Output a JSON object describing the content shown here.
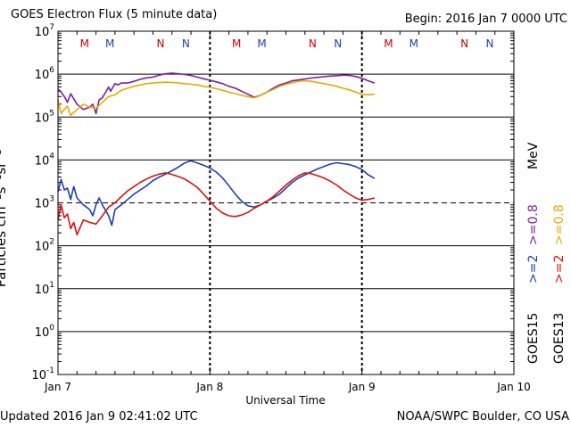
{
  "header": {
    "title": "GOES Electron Flux (5 minute data)",
    "begin": "Begin: 2016 Jan 7 0000 UTC"
  },
  "footer": {
    "updated": "Updated 2016 Jan  9 02:41:02 UTC",
    "credit": "NOAA/SWPC Boulder, CO USA"
  },
  "legend": {
    "goes15": "GOES15",
    "goes13": "GOES13",
    "e2_goes15": ">=2",
    "e2_goes13": ">=2",
    "e08_goes15": ">=0.8",
    "e08_goes13": ">=0.8",
    "unit": "MeV"
  },
  "chart_data": {
    "type": "line",
    "xlabel": "Universal Time",
    "ylabel": "Particles cm⁻²s⁻¹sr⁻¹",
    "y_scale": "log",
    "ylim_exponent": [
      -1,
      7
    ],
    "y_ticks": [
      {
        "base": "10",
        "exp": "7"
      },
      {
        "base": "10",
        "exp": "6"
      },
      {
        "base": "10",
        "exp": "5"
      },
      {
        "base": "10",
        "exp": "4"
      },
      {
        "base": "10",
        "exp": "3"
      },
      {
        "base": "10",
        "exp": "2"
      },
      {
        "base": "10",
        "exp": "1"
      },
      {
        "base": "10",
        "exp": "0"
      },
      {
        "base": "10",
        "exp": "-1"
      }
    ],
    "xlim_hours": [
      0,
      72
    ],
    "x_ticks": [
      {
        "label": "Jan 7",
        "hours": 0
      },
      {
        "label": "Jan 8",
        "hours": 24
      },
      {
        "label": "Jan 9",
        "hours": 48
      },
      {
        "label": "Jan 10",
        "hours": 72
      }
    ],
    "threshold_line": {
      "value": 1000,
      "style": "dashed"
    },
    "markers": [
      {
        "label": "M",
        "hours": 4.2,
        "color": "#cc0000"
      },
      {
        "label": "M",
        "hours": 8.2,
        "color": "#1f3fb0"
      },
      {
        "label": "N",
        "hours": 16.2,
        "color": "#cc0000"
      },
      {
        "label": "N",
        "hours": 20.2,
        "color": "#1f3fb0"
      },
      {
        "label": "M",
        "hours": 28.2,
        "color": "#cc0000"
      },
      {
        "label": "M",
        "hours": 32.2,
        "color": "#1f3fb0"
      },
      {
        "label": "N",
        "hours": 40.2,
        "color": "#cc0000"
      },
      {
        "label": "N",
        "hours": 44.2,
        "color": "#1f3fb0"
      },
      {
        "label": "M",
        "hours": 52.2,
        "color": "#cc0000"
      },
      {
        "label": "M",
        "hours": 56.2,
        "color": "#1f3fb0"
      },
      {
        "label": "N",
        "hours": 64.2,
        "color": "#cc0000"
      },
      {
        "label": "N",
        "hours": 68.2,
        "color": "#1f3fb0"
      }
    ],
    "series": [
      {
        "name": "GOES15 >=0.8 MeV",
        "color": "#7a1fa0",
        "x": [
          0,
          0.5,
          1,
          1.5,
          2,
          3,
          4,
          5,
          5.5,
          6,
          6.5,
          7,
          8,
          8.3,
          9,
          9.5,
          10,
          11,
          12,
          13,
          14,
          15,
          16,
          17,
          18,
          19,
          20,
          21,
          22,
          23,
          24,
          25,
          26,
          27,
          28,
          29,
          30,
          31,
          32,
          33,
          34,
          35,
          36,
          37,
          38,
          39,
          40,
          41,
          42,
          43,
          44,
          45,
          46,
          47,
          48,
          49,
          50
        ],
        "y": [
          450000,
          380000,
          300000,
          220000,
          350000,
          200000,
          150000,
          170000,
          200000,
          120000,
          250000,
          280000,
          500000,
          400000,
          600000,
          560000,
          620000,
          620000,
          680000,
          760000,
          820000,
          850000,
          950000,
          1020000,
          1050000,
          1020000,
          980000,
          930000,
          850000,
          780000,
          720000,
          660000,
          600000,
          520000,
          470000,
          400000,
          340000,
          290000,
          320000,
          380000,
          470000,
          560000,
          620000,
          700000,
          730000,
          770000,
          810000,
          840000,
          870000,
          900000,
          920000,
          950000,
          930000,
          880000,
          800000,
          700000,
          620000
        ]
      },
      {
        "name": "GOES13 >=0.8 MeV",
        "color": "#e8a900",
        "x": [
          0,
          0.5,
          1,
          1.5,
          2,
          3,
          4,
          5,
          6,
          7,
          8,
          9,
          10,
          11,
          12,
          13,
          14,
          15,
          16,
          17,
          18,
          19,
          20,
          21,
          22,
          23,
          24,
          25,
          26,
          27,
          28,
          29,
          30,
          31,
          32,
          33,
          34,
          35,
          36,
          37,
          38,
          39,
          40,
          41,
          42,
          43,
          44,
          45,
          46,
          47,
          48,
          49,
          50
        ],
        "y": [
          250000,
          120000,
          150000,
          180000,
          110000,
          150000,
          200000,
          170000,
          160000,
          220000,
          300000,
          330000,
          420000,
          470000,
          520000,
          560000,
          600000,
          620000,
          640000,
          650000,
          640000,
          620000,
          600000,
          580000,
          560000,
          520000,
          490000,
          460000,
          420000,
          380000,
          350000,
          320000,
          300000,
          280000,
          320000,
          380000,
          440000,
          520000,
          580000,
          630000,
          680000,
          700000,
          680000,
          640000,
          600000,
          560000,
          520000,
          470000,
          430000,
          380000,
          340000,
          330000,
          340000
        ]
      },
      {
        "name": "GOES15 >=2 MeV",
        "color": "#1f3fb0",
        "x": [
          0,
          0.5,
          1,
          1.5,
          2,
          2.5,
          3,
          4,
          5,
          5.5,
          6,
          6.5,
          7,
          8,
          8.5,
          9,
          10,
          11,
          12,
          13,
          14,
          15,
          16,
          17,
          18,
          19,
          20,
          21,
          22,
          23,
          24,
          25,
          26,
          27,
          28,
          29,
          30,
          31,
          32,
          33,
          34,
          35,
          36,
          37,
          38,
          39,
          40,
          41,
          42,
          43,
          44,
          45,
          46,
          47,
          48,
          49,
          50
        ],
        "y": [
          1800,
          3500,
          2000,
          2200,
          1200,
          2400,
          1300,
          900,
          700,
          500,
          900,
          1300,
          900,
          500,
          300,
          700,
          900,
          1200,
          1600,
          2000,
          2500,
          3300,
          4000,
          4700,
          5600,
          6800,
          8500,
          9500,
          8500,
          7500,
          6500,
          5200,
          3800,
          2500,
          1600,
          1100,
          850,
          800,
          900,
          1100,
          1300,
          1600,
          2200,
          3000,
          3800,
          4500,
          5300,
          6200,
          7000,
          8000,
          8600,
          8200,
          7800,
          7000,
          6000,
          4500,
          3700
        ]
      },
      {
        "name": "GOES13 >=2 MeV",
        "color": "#dd1111",
        "x": [
          0,
          0.5,
          1,
          1.5,
          2,
          2.5,
          3,
          4,
          5,
          6,
          7,
          8,
          9,
          10,
          11,
          12,
          13,
          14,
          15,
          16,
          17,
          18,
          19,
          20,
          21,
          22,
          23,
          24,
          25,
          26,
          27,
          28,
          29,
          30,
          31,
          32,
          33,
          34,
          35,
          36,
          37,
          38,
          39,
          40,
          41,
          42,
          43,
          44,
          45,
          46,
          47,
          48,
          49,
          50
        ],
        "y": [
          400,
          900,
          450,
          550,
          250,
          350,
          180,
          400,
          350,
          320,
          500,
          800,
          1000,
          1400,
          1900,
          2400,
          3000,
          3600,
          4200,
          4700,
          5000,
          4600,
          4100,
          3600,
          2900,
          2300,
          1600,
          1100,
          750,
          580,
          500,
          480,
          520,
          600,
          750,
          900,
          1100,
          1400,
          1900,
          2600,
          3400,
          4300,
          5000,
          4800,
          4300,
          3800,
          3200,
          2600,
          2000,
          1600,
          1300,
          1150,
          1200,
          1300
        ]
      }
    ]
  }
}
